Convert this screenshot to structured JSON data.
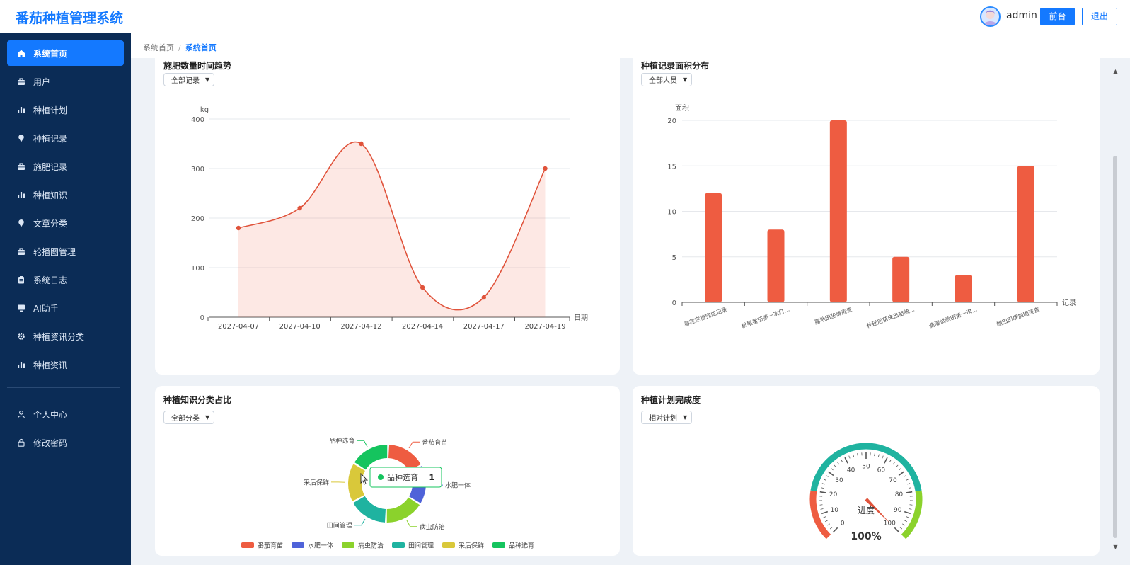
{
  "header": {
    "title": "番茄种植管理系统",
    "user": "admin",
    "front_label": "前台",
    "logout_label": "退出"
  },
  "sidebar": {
    "items": [
      {
        "label": "系统首页",
        "icon": "home-icon",
        "active": true
      },
      {
        "label": "用户",
        "icon": "briefcase-icon"
      },
      {
        "label": "种植计划",
        "icon": "bar-chart-icon"
      },
      {
        "label": "种植记录",
        "icon": "pin-icon"
      },
      {
        "label": "施肥记录",
        "icon": "briefcase-icon"
      },
      {
        "label": "种植知识",
        "icon": "bar-chart-icon"
      },
      {
        "label": "文章分类",
        "icon": "pin-icon"
      },
      {
        "label": "轮播图管理",
        "icon": "briefcase-icon"
      },
      {
        "label": "系统日志",
        "icon": "clipboard-icon"
      },
      {
        "label": "AI助手",
        "icon": "monitor-icon"
      },
      {
        "label": "种植资讯分类",
        "icon": "gear-icon"
      },
      {
        "label": "种植资讯",
        "icon": "bar-chart-icon"
      }
    ],
    "bottom_items": [
      {
        "label": "个人中心",
        "icon": "user-icon"
      },
      {
        "label": "修改密码",
        "icon": "lock-icon"
      }
    ]
  },
  "breadcrumb": {
    "home": "系统首页",
    "separator": "/",
    "current": "系统首页"
  },
  "cards": {
    "fertilizer": {
      "title": "施肥数量时间趋势",
      "select": "全部记录"
    },
    "area": {
      "title": "种植记录面积分布",
      "select": "全部人员"
    },
    "knowledge": {
      "title": "种植知识分类占比",
      "select": "全部分类"
    },
    "plan": {
      "title": "种植计划完成度",
      "select": "相对计划"
    }
  },
  "colors": {
    "primary": "#1479ff",
    "sidebar_bg": "#0b2c56",
    "line_red": "#e0533b",
    "bar_red": "#ee5c41"
  },
  "chart_data": [
    {
      "type": "area",
      "title": "施肥数量时间趋势",
      "ylabel": "kg",
      "xlabel": "日期",
      "x": [
        "2027-04-07",
        "2027-04-10",
        "2027-04-12",
        "2027-04-14",
        "2027-04-17",
        "2027-04-19"
      ],
      "values": [
        180,
        220,
        350,
        60,
        40,
        300
      ],
      "ylim": [
        0,
        400
      ],
      "yticks": [
        0,
        100,
        200,
        300,
        400
      ],
      "grid": true
    },
    {
      "type": "bar",
      "title": "种植记录面积分布",
      "ylabel": "面积",
      "xlabel": "记录",
      "categories": [
        "春茬定植完成记录",
        "粉果番茄第一次打...",
        "露地田垄情巡查",
        "秋延后苗床出苗统...",
        "滴灌试验田第一次...",
        "棚田田埂加固巡查"
      ],
      "values": [
        12,
        8,
        20,
        5,
        3,
        15
      ],
      "ylim": [
        0,
        20
      ],
      "yticks": [
        0,
        5,
        10,
        15,
        20
      ],
      "grid": true
    },
    {
      "type": "pie",
      "title": "种植知识分类占比",
      "categories": [
        "番茄育苗",
        "水肥一体",
        "病虫防治",
        "田间管理",
        "采后保鲜",
        "品种选育"
      ],
      "values": [
        1,
        1,
        1,
        1,
        1,
        1
      ],
      "colors": [
        "#ee5c41",
        "#4f63d9",
        "#8bd22c",
        "#1fb3a0",
        "#d9c83a",
        "#15c45e"
      ],
      "tooltip": {
        "name": "品种选育",
        "value": "1"
      }
    },
    {
      "type": "gauge",
      "title": "种植计划完成度",
      "value": 100,
      "label": "进度",
      "display": "100%",
      "ticks": [
        0,
        10,
        20,
        30,
        40,
        50,
        60,
        70,
        80,
        90,
        100
      ]
    }
  ]
}
